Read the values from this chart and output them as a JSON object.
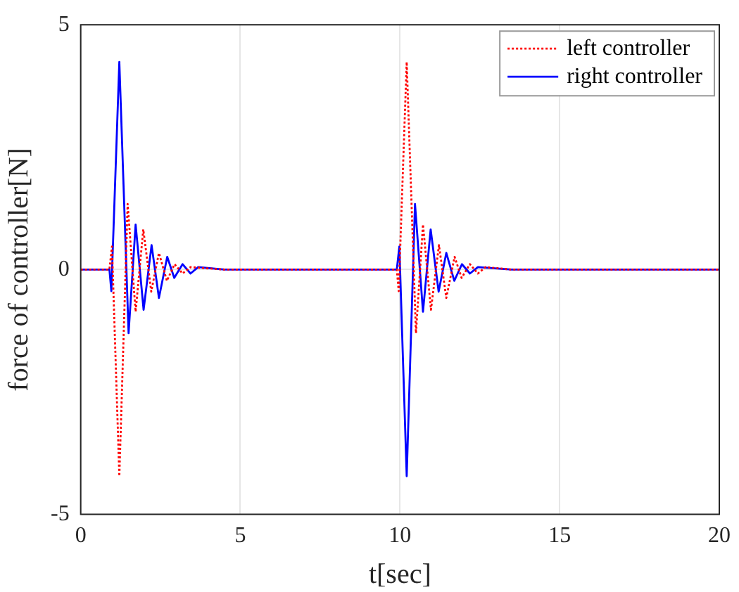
{
  "chart_data": {
    "type": "line",
    "xlabel": "t[sec]",
    "ylabel": "force of controller[N]",
    "xlim": [
      0,
      20
    ],
    "xticks": [
      0,
      5,
      10,
      15,
      20
    ],
    "ylim": [
      -5,
      5
    ],
    "yticks": [
      -5,
      0,
      5
    ],
    "grid": true,
    "legend": "top right",
    "marker": "none",
    "series": [
      {
        "name": "left controller",
        "color": "#ff0000",
        "line_style": "dotted",
        "x": [
          0,
          0.9,
          0.98,
          1.21,
          1.47,
          1.72,
          1.96,
          2.21,
          2.45,
          2.7,
          2.94,
          3.19,
          3.44,
          4.5,
          9.9,
          9.96,
          10.21,
          10.5,
          10.72,
          10.97,
          11.22,
          11.45,
          11.71,
          11.93,
          12.19,
          12.44,
          12.68,
          13.5,
          20
        ],
        "values": [
          0,
          0,
          0.47,
          -4.22,
          1.34,
          -0.86,
          0.82,
          -0.45,
          0.34,
          -0.23,
          0.11,
          -0.08,
          0.05,
          0,
          0,
          -0.44,
          4.24,
          -1.3,
          0.92,
          -0.82,
          0.5,
          -0.58,
          0.26,
          -0.17,
          0.11,
          -0.08,
          0.05,
          0,
          0
        ]
      },
      {
        "name": "right controller",
        "color": "#0000ff",
        "line_style": "solid",
        "x": [
          0,
          0.9,
          0.96,
          1.21,
          1.5,
          1.72,
          1.97,
          2.22,
          2.45,
          2.71,
          2.93,
          3.19,
          3.44,
          3.68,
          4.5,
          9.9,
          9.98,
          10.21,
          10.47,
          10.72,
          10.96,
          11.21,
          11.45,
          11.7,
          11.94,
          12.19,
          12.44,
          13.5,
          20
        ],
        "values": [
          0,
          0,
          -0.44,
          4.24,
          -1.3,
          0.92,
          -0.82,
          0.5,
          -0.58,
          0.26,
          -0.17,
          0.11,
          -0.08,
          0.05,
          0,
          0,
          0.47,
          -4.22,
          1.34,
          -0.86,
          0.82,
          -0.45,
          0.34,
          -0.23,
          0.11,
          -0.08,
          0.05,
          0,
          0
        ]
      }
    ]
  }
}
